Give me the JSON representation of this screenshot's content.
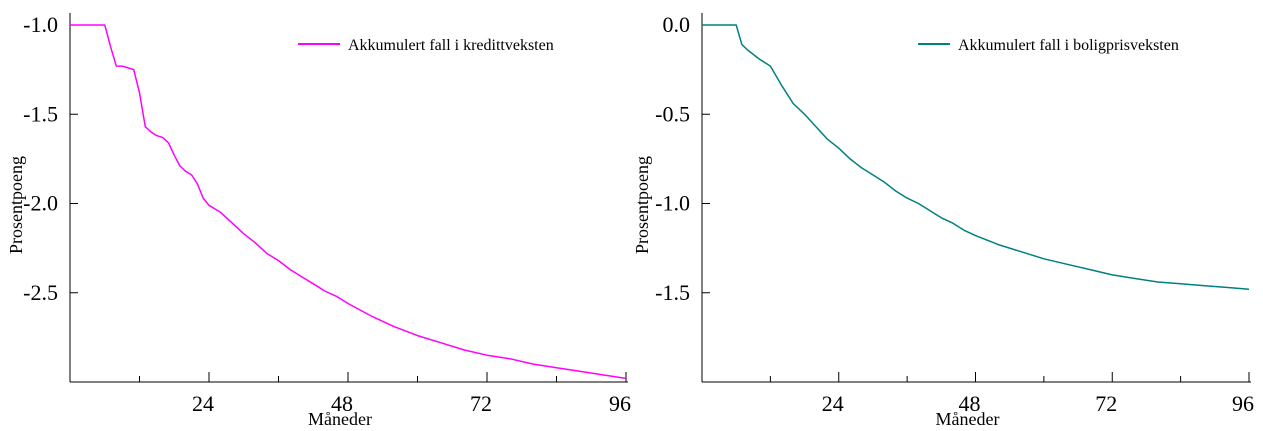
{
  "chart_data": [
    {
      "type": "line",
      "ylabel": "Prosentpoeng",
      "xlabel": "Måneder",
      "xlim": [
        0,
        96
      ],
      "ylim": [
        -3.0,
        -1.0
      ],
      "xticks": [
        24,
        48,
        72,
        96
      ],
      "xticks_minor": [
        12,
        36,
        60,
        84
      ],
      "yticks": [
        -1.0,
        -1.5,
        -2.0,
        -2.5
      ],
      "ytick_labels": [
        "-1.0",
        "-1.5",
        "-2.0",
        "-2.5"
      ],
      "xtick_labels": [
        "24",
        "48",
        "72",
        "96"
      ],
      "grid": false,
      "legend_position": "top-right",
      "series": [
        {
          "name": "Akkumulert fall i kredittveksten",
          "color": "#ff00ff",
          "x": [
            0,
            6,
            7,
            8,
            9,
            10,
            11,
            12,
            13,
            14,
            15,
            16,
            17,
            18,
            19,
            20,
            21,
            22,
            23,
            24,
            26,
            28,
            30,
            32,
            34,
            36,
            38,
            40,
            42,
            44,
            46,
            48,
            52,
            56,
            60,
            64,
            68,
            72,
            76,
            80,
            84,
            88,
            92,
            96
          ],
          "y": [
            -1.0,
            -1.0,
            -1.12,
            -1.23,
            -1.23,
            -1.24,
            -1.25,
            -1.38,
            -1.57,
            -1.6,
            -1.62,
            -1.63,
            -1.66,
            -1.73,
            -1.79,
            -1.82,
            -1.84,
            -1.89,
            -1.97,
            -2.01,
            -2.05,
            -2.11,
            -2.17,
            -2.22,
            -2.28,
            -2.32,
            -2.37,
            -2.41,
            -2.45,
            -2.49,
            -2.52,
            -2.56,
            -2.63,
            -2.69,
            -2.74,
            -2.78,
            -2.82,
            -2.85,
            -2.87,
            -2.9,
            -2.92,
            -2.94,
            -2.96,
            -2.98
          ]
        }
      ]
    },
    {
      "type": "line",
      "ylabel": "Prosentpoeng",
      "xlabel": "Måneder",
      "xlim": [
        0,
        96
      ],
      "ylim": [
        -2.0,
        0.0
      ],
      "xticks": [
        24,
        48,
        72,
        96
      ],
      "xticks_minor": [
        12,
        36,
        60,
        84
      ],
      "yticks": [
        0.0,
        -0.5,
        -1.0,
        -1.5
      ],
      "ytick_labels": [
        "0.0",
        "-0.5",
        "-1.0",
        "-1.5"
      ],
      "xtick_labels": [
        "24",
        "48",
        "72",
        "96"
      ],
      "grid": false,
      "legend_position": "top-right",
      "series": [
        {
          "name": "Akkumulert fall i boligprisveksten",
          "color": "#008080",
          "x": [
            0,
            6,
            7,
            8,
            10,
            12,
            14,
            16,
            18,
            20,
            22,
            24,
            26,
            28,
            30,
            32,
            34,
            36,
            38,
            40,
            42,
            44,
            46,
            48,
            52,
            56,
            60,
            64,
            68,
            72,
            76,
            80,
            84,
            88,
            92,
            96
          ],
          "y": [
            0.0,
            0.0,
            -0.11,
            -0.14,
            -0.19,
            -0.23,
            -0.34,
            -0.44,
            -0.5,
            -0.57,
            -0.64,
            -0.69,
            -0.75,
            -0.8,
            -0.84,
            -0.88,
            -0.93,
            -0.97,
            -1.0,
            -1.04,
            -1.08,
            -1.11,
            -1.15,
            -1.18,
            -1.23,
            -1.27,
            -1.31,
            -1.34,
            -1.37,
            -1.4,
            -1.42,
            -1.44,
            -1.45,
            -1.46,
            -1.47,
            -1.48
          ]
        }
      ]
    }
  ]
}
